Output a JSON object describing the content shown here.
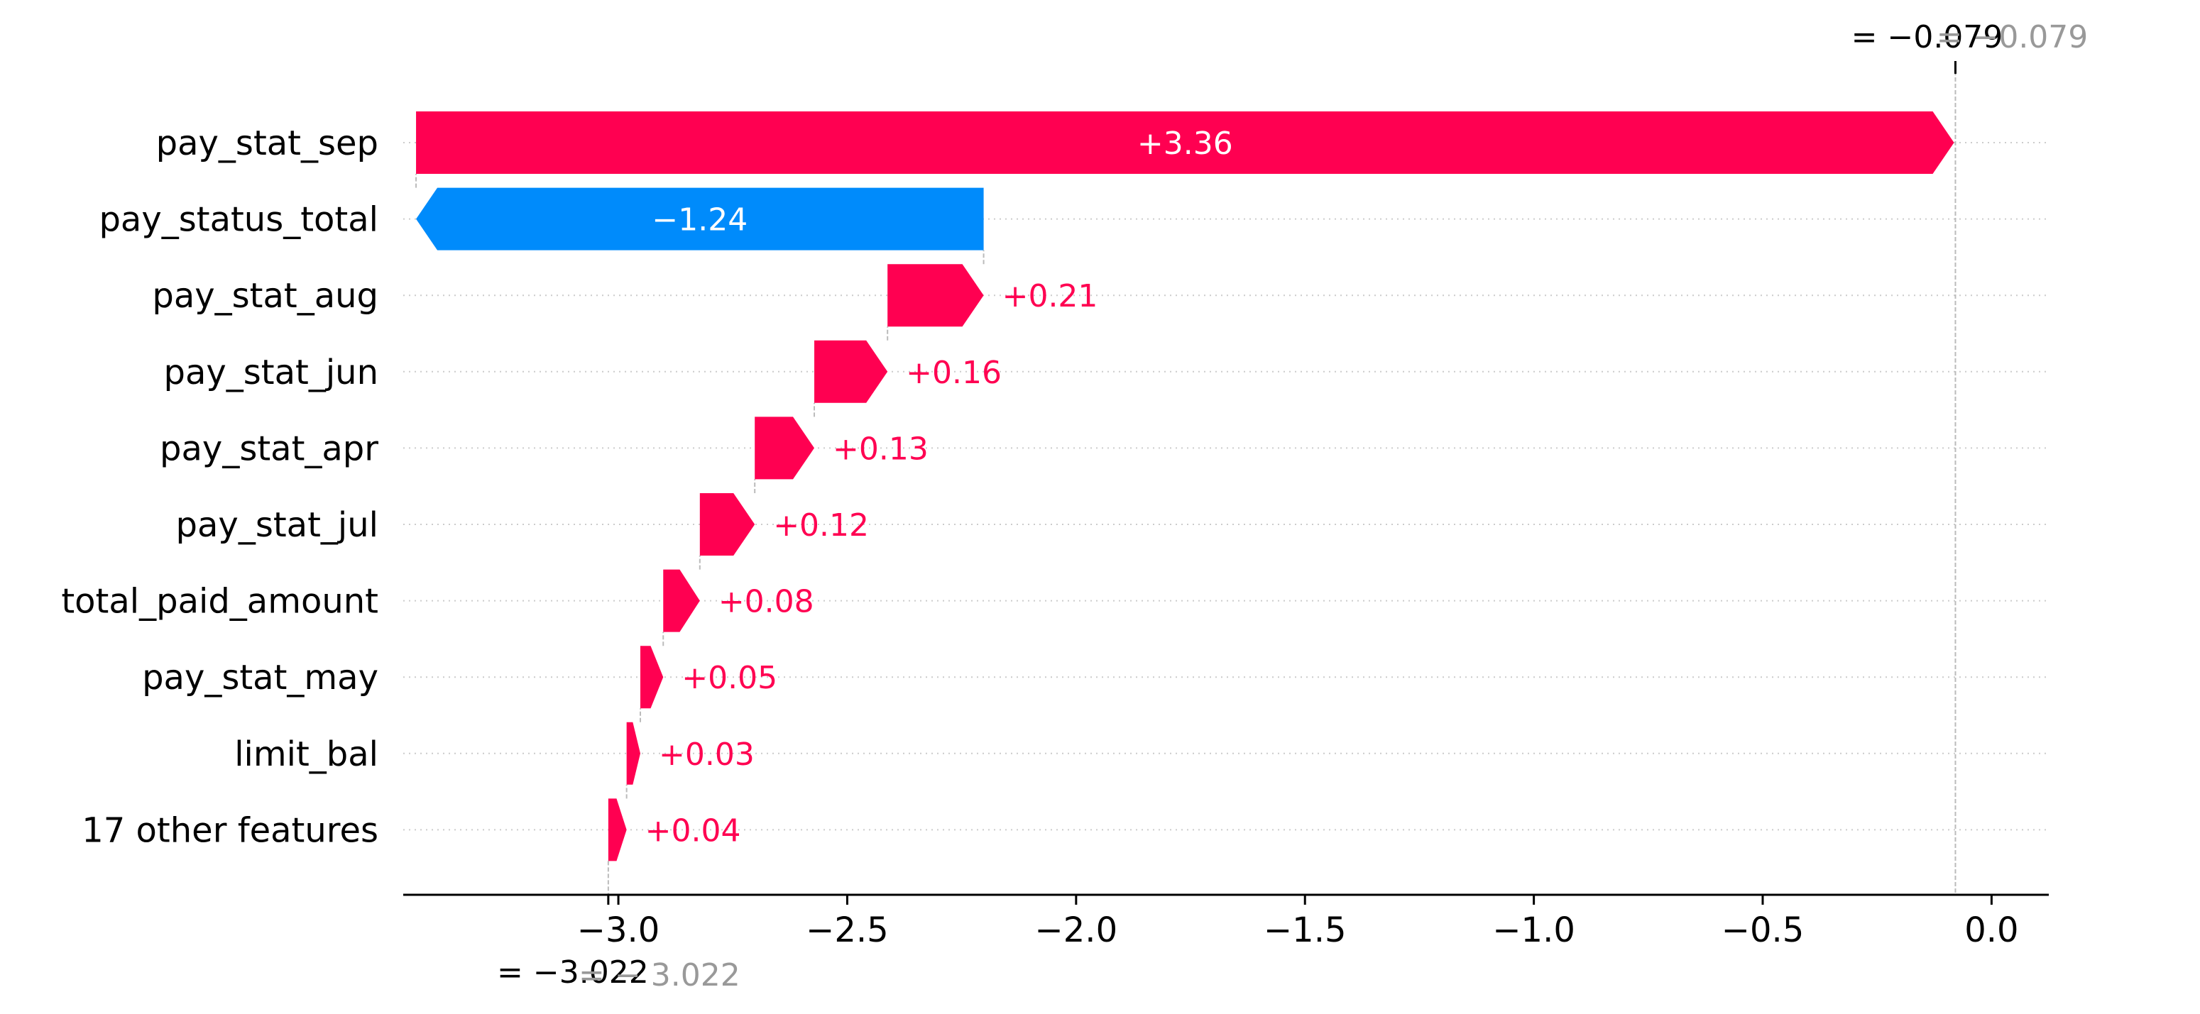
{
  "chart_data": {
    "type": "waterfall",
    "base_value": -3.022,
    "base_label": "= −3.022",
    "base_label_ghost": "= − 3.022",
    "output_value": -0.079,
    "output_label": "= −0.079",
    "output_label_ghost": "= −0.079",
    "features": [
      {
        "name": "pay_stat_sep",
        "value": 3.36,
        "label": "+3.36"
      },
      {
        "name": "pay_status_total",
        "value": -1.24,
        "label": "−1.24"
      },
      {
        "name": "pay_stat_aug",
        "value": 0.21,
        "label": "+0.21"
      },
      {
        "name": "pay_stat_jun",
        "value": 0.16,
        "label": "+0.16"
      },
      {
        "name": "pay_stat_apr",
        "value": 0.13,
        "label": "+0.13"
      },
      {
        "name": "pay_stat_jul",
        "value": 0.12,
        "label": "+0.12"
      },
      {
        "name": "total_paid_amount",
        "value": 0.08,
        "label": "+0.08"
      },
      {
        "name": "pay_stat_may",
        "value": 0.05,
        "label": "+0.05"
      },
      {
        "name": "limit_bal",
        "value": 0.03,
        "label": "+0.03"
      },
      {
        "name": "17 other features",
        "value": 0.04,
        "label": "+0.04"
      }
    ],
    "xlim": [
      -3.47,
      0.125
    ],
    "xticks": [
      {
        "value": -3.0,
        "label": "−3.0"
      },
      {
        "value": -2.5,
        "label": "−2.5"
      },
      {
        "value": -2.0,
        "label": "−2.0"
      },
      {
        "value": -1.5,
        "label": "−1.5"
      },
      {
        "value": -1.0,
        "label": "−1.0"
      },
      {
        "value": -0.5,
        "label": "−0.5"
      },
      {
        "value": 0.0,
        "label": "0.0"
      }
    ],
    "colors": {
      "positive": "#ff0051",
      "negative": "#008bfb",
      "inside_text": "#ffffff",
      "gridline": "#cccccc",
      "connector": "#bbbbbb",
      "axis": "#000000",
      "ghost_text": "#999999"
    }
  }
}
